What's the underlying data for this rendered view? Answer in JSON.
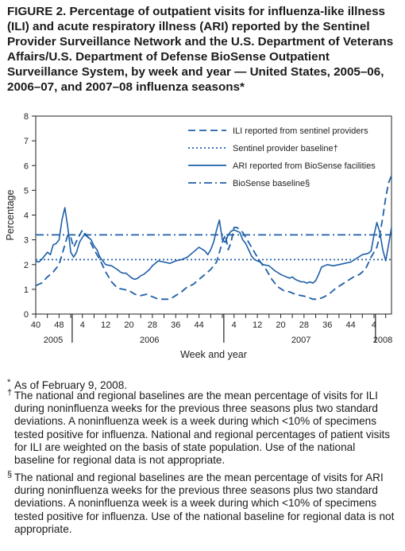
{
  "figure": {
    "title": "FIGURE 2. Percentage of outpatient visits for influenza-like illness (ILI) and acute respiratory illness (ARI) reported by the Sentinel Provider Surveillance Network and the U.S. Department of Veterans Affairs/U.S. Department of Defense BioSense Outpatient Surveillance System, by week and year — United States, 2005–06, 2006–07, and 2007–08 influenza seasons*"
  },
  "footnotes": [
    {
      "mark": "*",
      "text": "As of February 9, 2008."
    },
    {
      "mark": "†",
      "text": "The national and regional baselines are the mean percentage of visits for ILI during noninfluenza weeks for the previous three seasons plus two standard deviations. A noninfluenza week is a week during which <10% of specimens tested positive for influenza. National and regional percentages of patient visits for ILI are weighted on the basis of state population. Use of the national baseline for regional data is not appropriate."
    },
    {
      "mark": "§",
      "text": "The national and regional baselines are the mean percentage of visits for ARI during noninfluenza weeks for the previous three seasons plus two standard deviations. A noninfluenza week is a week during which <10% of specimens tested positive for influenza. Use of the national baseline for regional data is not appropriate."
    }
  ],
  "chart_data": {
    "type": "line",
    "ylabel": "Percentage",
    "xlabel": "Week and year",
    "ylim": [
      0,
      8
    ],
    "yticks": [
      0,
      1,
      2,
      3,
      4,
      5,
      6,
      7,
      8
    ],
    "xlim": [
      0,
      122
    ],
    "x_tick_positions": [
      0,
      4,
      8,
      12,
      16,
      20,
      24,
      28,
      32,
      36,
      40,
      44,
      48,
      52,
      56,
      60,
      64,
      68,
      72,
      76,
      80,
      84,
      88,
      92,
      96,
      100,
      104,
      108,
      112,
      116,
      120
    ],
    "x_tick_labels": [
      "40",
      "",
      "48",
      "",
      "4",
      "",
      "12",
      "",
      "20",
      "",
      "28",
      "",
      "36",
      "",
      "44",
      "",
      "",
      "4",
      "",
      "12",
      "",
      "20",
      "",
      "28",
      "",
      "36",
      "",
      "44",
      "",
      "4",
      ""
    ],
    "year_labels": [
      {
        "label": "2005",
        "center_x": 6
      },
      {
        "label": "2006",
        "center_x": 39
      },
      {
        "label": "2007",
        "center_x": 91
      },
      {
        "label": "2008",
        "center_x": 119
      }
    ],
    "year_dividers_x": [
      12.5,
      64.5,
      116.5
    ],
    "x_unit": "weeks since week 40 of 2005",
    "series": [
      {
        "name": "ILI reported from sentinel providers",
        "style": "dashed",
        "points": [
          [
            0,
            1.15
          ],
          [
            2,
            1.25
          ],
          [
            4,
            1.5
          ],
          [
            6,
            1.7
          ],
          [
            8,
            2.0
          ],
          [
            10,
            2.8
          ],
          [
            11,
            3.2
          ],
          [
            12,
            3.1
          ],
          [
            13,
            2.7
          ],
          [
            14,
            2.95
          ],
          [
            16,
            3.4
          ],
          [
            17,
            3.2
          ],
          [
            18,
            3.1
          ],
          [
            20,
            2.6
          ],
          [
            22,
            2.2
          ],
          [
            24,
            1.7
          ],
          [
            26,
            1.3
          ],
          [
            28,
            1.05
          ],
          [
            30,
            1.0
          ],
          [
            32,
            0.95
          ],
          [
            34,
            0.8
          ],
          [
            36,
            0.75
          ],
          [
            38,
            0.8
          ],
          [
            40,
            0.7
          ],
          [
            42,
            0.6
          ],
          [
            44,
            0.6
          ],
          [
            46,
            0.6
          ],
          [
            48,
            0.75
          ],
          [
            50,
            0.9
          ],
          [
            52,
            1.1
          ],
          [
            54,
            1.2
          ],
          [
            56,
            1.4
          ],
          [
            58,
            1.6
          ],
          [
            60,
            1.8
          ],
          [
            62,
            2.1
          ],
          [
            64,
            2.9
          ],
          [
            65,
            3.2
          ],
          [
            66,
            2.6
          ],
          [
            67,
            2.9
          ],
          [
            68,
            3.5
          ],
          [
            69,
            3.5
          ],
          [
            71,
            3.3
          ],
          [
            73,
            2.9
          ],
          [
            75,
            2.5
          ],
          [
            77,
            2.1
          ],
          [
            79,
            1.8
          ],
          [
            81,
            1.4
          ],
          [
            83,
            1.1
          ],
          [
            85,
            0.95
          ],
          [
            87,
            0.9
          ],
          [
            89,
            0.8
          ],
          [
            91,
            0.75
          ],
          [
            93,
            0.7
          ],
          [
            95,
            0.6
          ],
          [
            97,
            0.6
          ],
          [
            99,
            0.7
          ],
          [
            101,
            0.85
          ],
          [
            103,
            1.05
          ],
          [
            105,
            1.2
          ],
          [
            107,
            1.35
          ],
          [
            109,
            1.5
          ],
          [
            111,
            1.6
          ],
          [
            113,
            1.8
          ],
          [
            115,
            2.3
          ],
          [
            117,
            2.7
          ],
          [
            118,
            3.2
          ],
          [
            119,
            3.9
          ],
          [
            120,
            4.7
          ],
          [
            121,
            5.3
          ],
          [
            122,
            5.6
          ]
        ]
      },
      {
        "name": "Sentinel provider baseline†",
        "style": "dotted",
        "points": [
          [
            0,
            2.2
          ],
          [
            122,
            2.2
          ]
        ]
      },
      {
        "name": "ARI reported from BioSense facilities",
        "style": "solid",
        "points": [
          [
            0,
            2.15
          ],
          [
            1,
            2.1
          ],
          [
            2,
            2.2
          ],
          [
            3,
            2.35
          ],
          [
            4,
            2.5
          ],
          [
            5,
            2.4
          ],
          [
            6,
            2.8
          ],
          [
            7,
            2.85
          ],
          [
            8,
            3.0
          ],
          [
            9,
            3.8
          ],
          [
            10,
            4.3
          ],
          [
            11,
            3.5
          ],
          [
            12,
            2.5
          ],
          [
            13,
            2.3
          ],
          [
            14,
            2.5
          ],
          [
            15,
            2.9
          ],
          [
            16,
            3.1
          ],
          [
            17,
            3.25
          ],
          [
            18,
            3.1
          ],
          [
            19,
            3.0
          ],
          [
            20,
            2.75
          ],
          [
            21,
            2.6
          ],
          [
            22,
            2.3
          ],
          [
            23,
            2.15
          ],
          [
            24,
            2.0
          ],
          [
            26,
            1.95
          ],
          [
            28,
            1.8
          ],
          [
            29,
            1.7
          ],
          [
            30,
            1.65
          ],
          [
            31,
            1.65
          ],
          [
            32,
            1.55
          ],
          [
            33,
            1.45
          ],
          [
            34,
            1.4
          ],
          [
            35,
            1.45
          ],
          [
            36,
            1.55
          ],
          [
            37,
            1.6
          ],
          [
            38,
            1.7
          ],
          [
            39,
            1.8
          ],
          [
            40,
            1.95
          ],
          [
            41,
            2.05
          ],
          [
            42,
            2.15
          ],
          [
            44,
            2.1
          ],
          [
            46,
            2.05
          ],
          [
            48,
            2.15
          ],
          [
            50,
            2.2
          ],
          [
            52,
            2.3
          ],
          [
            54,
            2.5
          ],
          [
            56,
            2.7
          ],
          [
            58,
            2.55
          ],
          [
            59,
            2.4
          ],
          [
            60,
            2.6
          ],
          [
            61,
            2.9
          ],
          [
            62,
            3.4
          ],
          [
            63,
            3.8
          ],
          [
            64,
            3.0
          ],
          [
            65,
            2.9
          ],
          [
            66,
            3.2
          ],
          [
            67,
            3.35
          ],
          [
            68,
            3.4
          ],
          [
            70,
            3.3
          ],
          [
            71,
            3.0
          ],
          [
            72,
            2.85
          ],
          [
            73,
            2.6
          ],
          [
            74,
            2.35
          ],
          [
            75,
            2.2
          ],
          [
            77,
            2.1
          ],
          [
            78,
            2.0
          ],
          [
            80,
            1.95
          ],
          [
            82,
            1.75
          ],
          [
            84,
            1.6
          ],
          [
            86,
            1.5
          ],
          [
            87,
            1.45
          ],
          [
            88,
            1.5
          ],
          [
            89,
            1.4
          ],
          [
            90,
            1.35
          ],
          [
            91,
            1.3
          ],
          [
            92,
            1.3
          ],
          [
            93,
            1.25
          ],
          [
            94,
            1.3
          ],
          [
            95,
            1.25
          ],
          [
            96,
            1.35
          ],
          [
            97,
            1.6
          ],
          [
            98,
            1.9
          ],
          [
            100,
            2.0
          ],
          [
            102,
            1.95
          ],
          [
            104,
            2.0
          ],
          [
            106,
            2.05
          ],
          [
            108,
            2.1
          ],
          [
            110,
            2.25
          ],
          [
            112,
            2.4
          ],
          [
            114,
            2.45
          ],
          [
            115,
            2.55
          ],
          [
            116,
            3.2
          ],
          [
            117,
            3.7
          ],
          [
            118,
            3.3
          ],
          [
            119,
            2.6
          ],
          [
            120,
            2.15
          ],
          [
            121,
            2.8
          ],
          [
            122,
            3.5
          ]
        ]
      },
      {
        "name": "BioSense baseline§",
        "style": "dashdot",
        "points": [
          [
            0,
            3.2
          ],
          [
            122,
            3.2
          ]
        ]
      }
    ],
    "legend": {
      "position": "top-right"
    }
  }
}
